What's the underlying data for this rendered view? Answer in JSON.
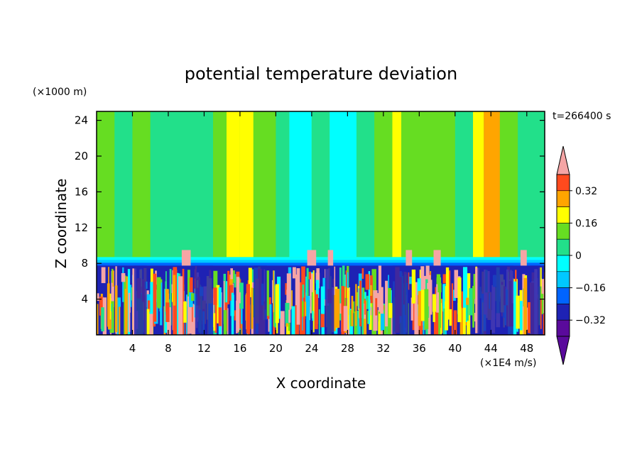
{
  "chart_data": {
    "type": "heatmap",
    "title": "potential temperature deviation",
    "xlabel": "X coordinate",
    "ylabel": "Z coordinate",
    "x_units": "(×1E4 m/s)",
    "y_units": "(×1000 m)",
    "time_label": "t=266400 s",
    "xlim": [
      0,
      50
    ],
    "ylim": [
      0,
      25
    ],
    "xticks": [
      4,
      8,
      12,
      16,
      20,
      24,
      28,
      32,
      36,
      40,
      44,
      48
    ],
    "yticks": [
      4,
      8,
      12,
      16,
      20,
      24
    ],
    "tropopause_z": 8.7,
    "colorbar": {
      "levels": [
        -0.4,
        -0.32,
        -0.24,
        -0.16,
        -0.08,
        0,
        0.08,
        0.16,
        0.24,
        0.32,
        0.4
      ],
      "colors": [
        "#5a0a9c",
        "#1e22b4",
        "#0064ff",
        "#00c8ff",
        "#00ffff",
        "#22e08a",
        "#66dd22",
        "#ffff00",
        "#ffa500",
        "#ff4a1e",
        "#f5a5a5"
      ],
      "tick_labels": [
        "0.32",
        "0.16",
        "0",
        "−0.16",
        "−0.32"
      ],
      "tick_values": [
        0.32,
        0.16,
        0,
        -0.16,
        -0.32
      ]
    },
    "upper_columns": [
      {
        "x": [
          0,
          2
        ],
        "value": 0.02
      },
      {
        "x": [
          2,
          4
        ],
        "value": -0.03
      },
      {
        "x": [
          4,
          6
        ],
        "value": 0.04
      },
      {
        "x": [
          6,
          13
        ],
        "value": -0.02
      },
      {
        "x": [
          13,
          14.5
        ],
        "value": 0.05
      },
      {
        "x": [
          14.5,
          16
        ],
        "value": 0.14
      },
      {
        "x": [
          16,
          17.5
        ],
        "value": 0.12
      },
      {
        "x": [
          17.5,
          20
        ],
        "value": 0.02
      },
      {
        "x": [
          20,
          21.5
        ],
        "value": -0.03
      },
      {
        "x": [
          21.5,
          24
        ],
        "value": -0.12
      },
      {
        "x": [
          24,
          26
        ],
        "value": -0.05
      },
      {
        "x": [
          26,
          29
        ],
        "value": -0.12
      },
      {
        "x": [
          29,
          31
        ],
        "value": -0.04
      },
      {
        "x": [
          31,
          33
        ],
        "value": 0.04
      },
      {
        "x": [
          33,
          34
        ],
        "value": 0.12
      },
      {
        "x": [
          34,
          36
        ],
        "value": 0.04
      },
      {
        "x": [
          36,
          38
        ],
        "value": 0.0
      },
      {
        "x": [
          38,
          40
        ],
        "value": 0.05
      },
      {
        "x": [
          40,
          42
        ],
        "value": -0.02
      },
      {
        "x": [
          42,
          43.2
        ],
        "value": 0.12
      },
      {
        "x": [
          43.2,
          45
        ],
        "value": 0.22
      },
      {
        "x": [
          45,
          47
        ],
        "value": 0.05
      },
      {
        "x": [
          47,
          50
        ],
        "value": -0.03
      }
    ]
  }
}
